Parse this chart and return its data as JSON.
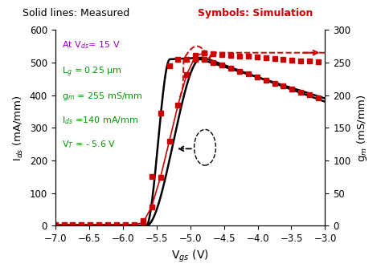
{
  "title_left": "Solid lines: Measured",
  "title_right": "Symbols: Simulation",
  "xlabel": "V$_{gs}$ (V)",
  "ylabel_left": "I$_{ds}$ (mA/mm)",
  "ylabel_right": "g$_m$ (mS/mm)",
  "xlim": [
    -7.0,
    -3.0
  ],
  "ylim_left": [
    0,
    600
  ],
  "ylim_right": [
    0,
    300
  ],
  "xticks": [
    -7.0,
    -6.5,
    -6.0,
    -5.5,
    -5.0,
    -4.5,
    -4.0,
    -3.5,
    -3.0
  ],
  "yticks_left": [
    0,
    100,
    200,
    300,
    400,
    500,
    600
  ],
  "yticks_right": [
    0,
    50,
    100,
    150,
    200,
    250,
    300
  ],
  "annotation_vds": "At V$_{ds}$= 15 V",
  "annotation_lg": "L$_g$ = 0.25 μm",
  "annotation_gm": "g$_m$ = 255 mS/mm",
  "annotation_ids": "I$_{ds}$ =140 mA/mm",
  "annotation_vt": "V$_T$ = - 5.6 V",
  "color_ids_line": "#000000",
  "color_sim": "#cc0000",
  "color_title_left": "#000000",
  "color_title_right": "#cc0000",
  "color_annotation_vds": "#9900cc",
  "color_annotation_params": "#009900",
  "background_color": "#ffffff"
}
